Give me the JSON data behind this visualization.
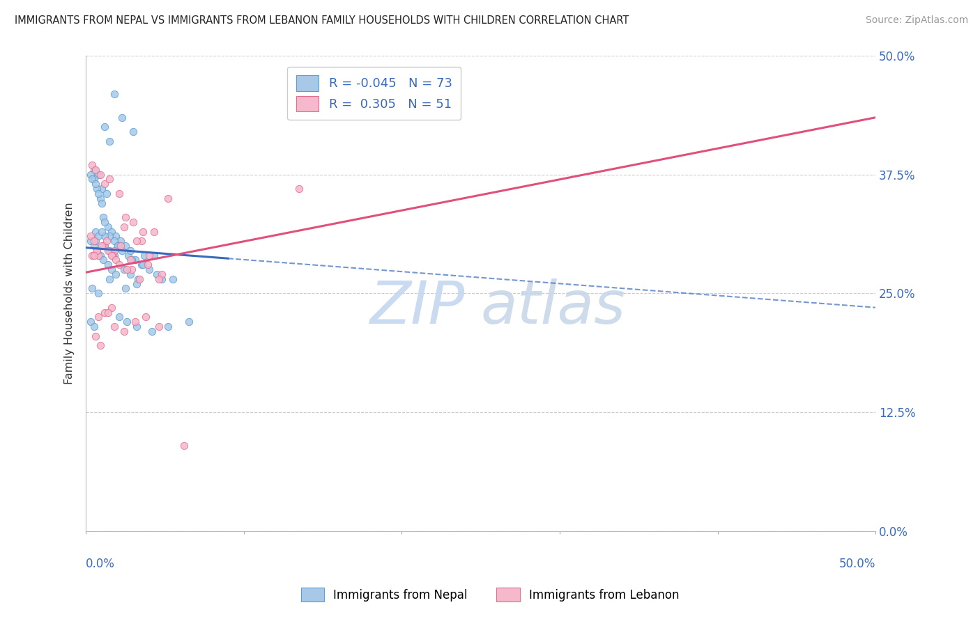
{
  "title": "IMMIGRANTS FROM NEPAL VS IMMIGRANTS FROM LEBANON FAMILY HOUSEHOLDS WITH CHILDREN CORRELATION CHART",
  "source": "Source: ZipAtlas.com",
  "ylabel": "Family Households with Children",
  "ytick_values": [
    0.0,
    12.5,
    25.0,
    37.5,
    50.0
  ],
  "xlim": [
    0.0,
    50.0
  ],
  "ylim": [
    0.0,
    50.0
  ],
  "nepal_color": "#a8c8e8",
  "nepal_color_edge": "#5a9fd4",
  "lebanon_color": "#f5b8cc",
  "lebanon_color_edge": "#e07090",
  "nepal_R": -0.045,
  "nepal_N": 73,
  "lebanon_R": 0.305,
  "lebanon_N": 51,
  "nepal_line_color": "#3a6abf",
  "lebanon_line_color": "#e0507a",
  "nepal_line_y0": 29.8,
  "nepal_line_y1": 23.5,
  "lebanon_line_y0": 27.2,
  "lebanon_line_y1": 43.5,
  "nepal_solid_end_x": 9.0,
  "watermark_zip_color": "#c5d8f0",
  "watermark_atlas_color": "#c5d5e8",
  "nepal_scatter_x": [
    1.8,
    2.3,
    3.0,
    1.2,
    1.5,
    0.5,
    0.8,
    1.0,
    1.3,
    0.3,
    0.5,
    0.7,
    0.9,
    1.1,
    1.4,
    1.6,
    1.9,
    2.2,
    2.5,
    0.4,
    0.6,
    0.8,
    1.0,
    1.2,
    1.5,
    1.8,
    2.0,
    2.3,
    2.7,
    3.1,
    3.5,
    2.9,
    3.6,
    4.3,
    0.3,
    0.5,
    0.7,
    0.9,
    1.1,
    1.4,
    1.6,
    1.9,
    2.4,
    2.8,
    3.3,
    4.0,
    4.8,
    0.6,
    1.2,
    2.0,
    2.8,
    3.7,
    4.5,
    0.4,
    0.8,
    1.5,
    2.5,
    3.2,
    5.5,
    0.3,
    0.5,
    0.6,
    0.8,
    1.0,
    1.2,
    1.5,
    1.8,
    2.1,
    2.6,
    3.2,
    4.2,
    5.2,
    6.5
  ],
  "nepal_scatter_y": [
    46.0,
    43.5,
    42.0,
    42.5,
    41.0,
    38.0,
    37.5,
    36.0,
    35.5,
    37.5,
    37.0,
    36.0,
    35.0,
    33.0,
    32.0,
    31.5,
    31.0,
    30.5,
    30.0,
    37.0,
    36.5,
    35.5,
    34.5,
    32.5,
    31.0,
    30.5,
    30.0,
    29.5,
    29.0,
    28.5,
    28.0,
    28.5,
    28.0,
    29.0,
    30.5,
    30.0,
    29.5,
    29.0,
    28.5,
    28.0,
    27.5,
    27.0,
    27.5,
    27.0,
    26.5,
    27.5,
    26.5,
    31.5,
    31.0,
    30.0,
    29.5,
    29.0,
    27.0,
    25.5,
    25.0,
    26.5,
    25.5,
    26.0,
    26.5,
    22.0,
    21.5,
    30.5,
    31.0,
    31.5,
    30.0,
    29.5,
    29.0,
    22.5,
    22.0,
    21.5,
    21.0,
    21.5,
    22.0
  ],
  "lebanon_scatter_x": [
    0.4,
    0.6,
    0.9,
    1.2,
    1.5,
    1.8,
    0.3,
    0.5,
    0.8,
    1.1,
    1.4,
    1.7,
    2.1,
    2.5,
    3.0,
    3.6,
    4.3,
    5.2,
    0.4,
    0.7,
    1.0,
    1.3,
    1.6,
    1.9,
    2.4,
    2.9,
    3.5,
    4.0,
    2.2,
    2.8,
    3.4,
    3.9,
    4.8,
    0.5,
    0.8,
    1.2,
    1.6,
    2.1,
    2.6,
    3.2,
    4.6,
    13.5,
    0.6,
    0.9,
    1.4,
    1.8,
    2.4,
    3.1,
    3.8,
    4.6,
    6.2
  ],
  "lebanon_scatter_y": [
    38.5,
    38.0,
    37.5,
    36.5,
    37.0,
    29.5,
    31.0,
    30.5,
    29.0,
    30.0,
    29.5,
    29.0,
    35.5,
    33.0,
    32.5,
    31.5,
    31.5,
    35.0,
    29.0,
    29.5,
    30.0,
    30.5,
    29.0,
    28.5,
    32.0,
    27.5,
    30.5,
    29.0,
    30.0,
    28.5,
    26.5,
    28.0,
    27.0,
    29.0,
    22.5,
    23.0,
    23.5,
    28.0,
    27.5,
    30.5,
    26.5,
    36.0,
    20.5,
    19.5,
    23.0,
    21.5,
    21.0,
    22.0,
    22.5,
    21.5,
    9.0
  ]
}
